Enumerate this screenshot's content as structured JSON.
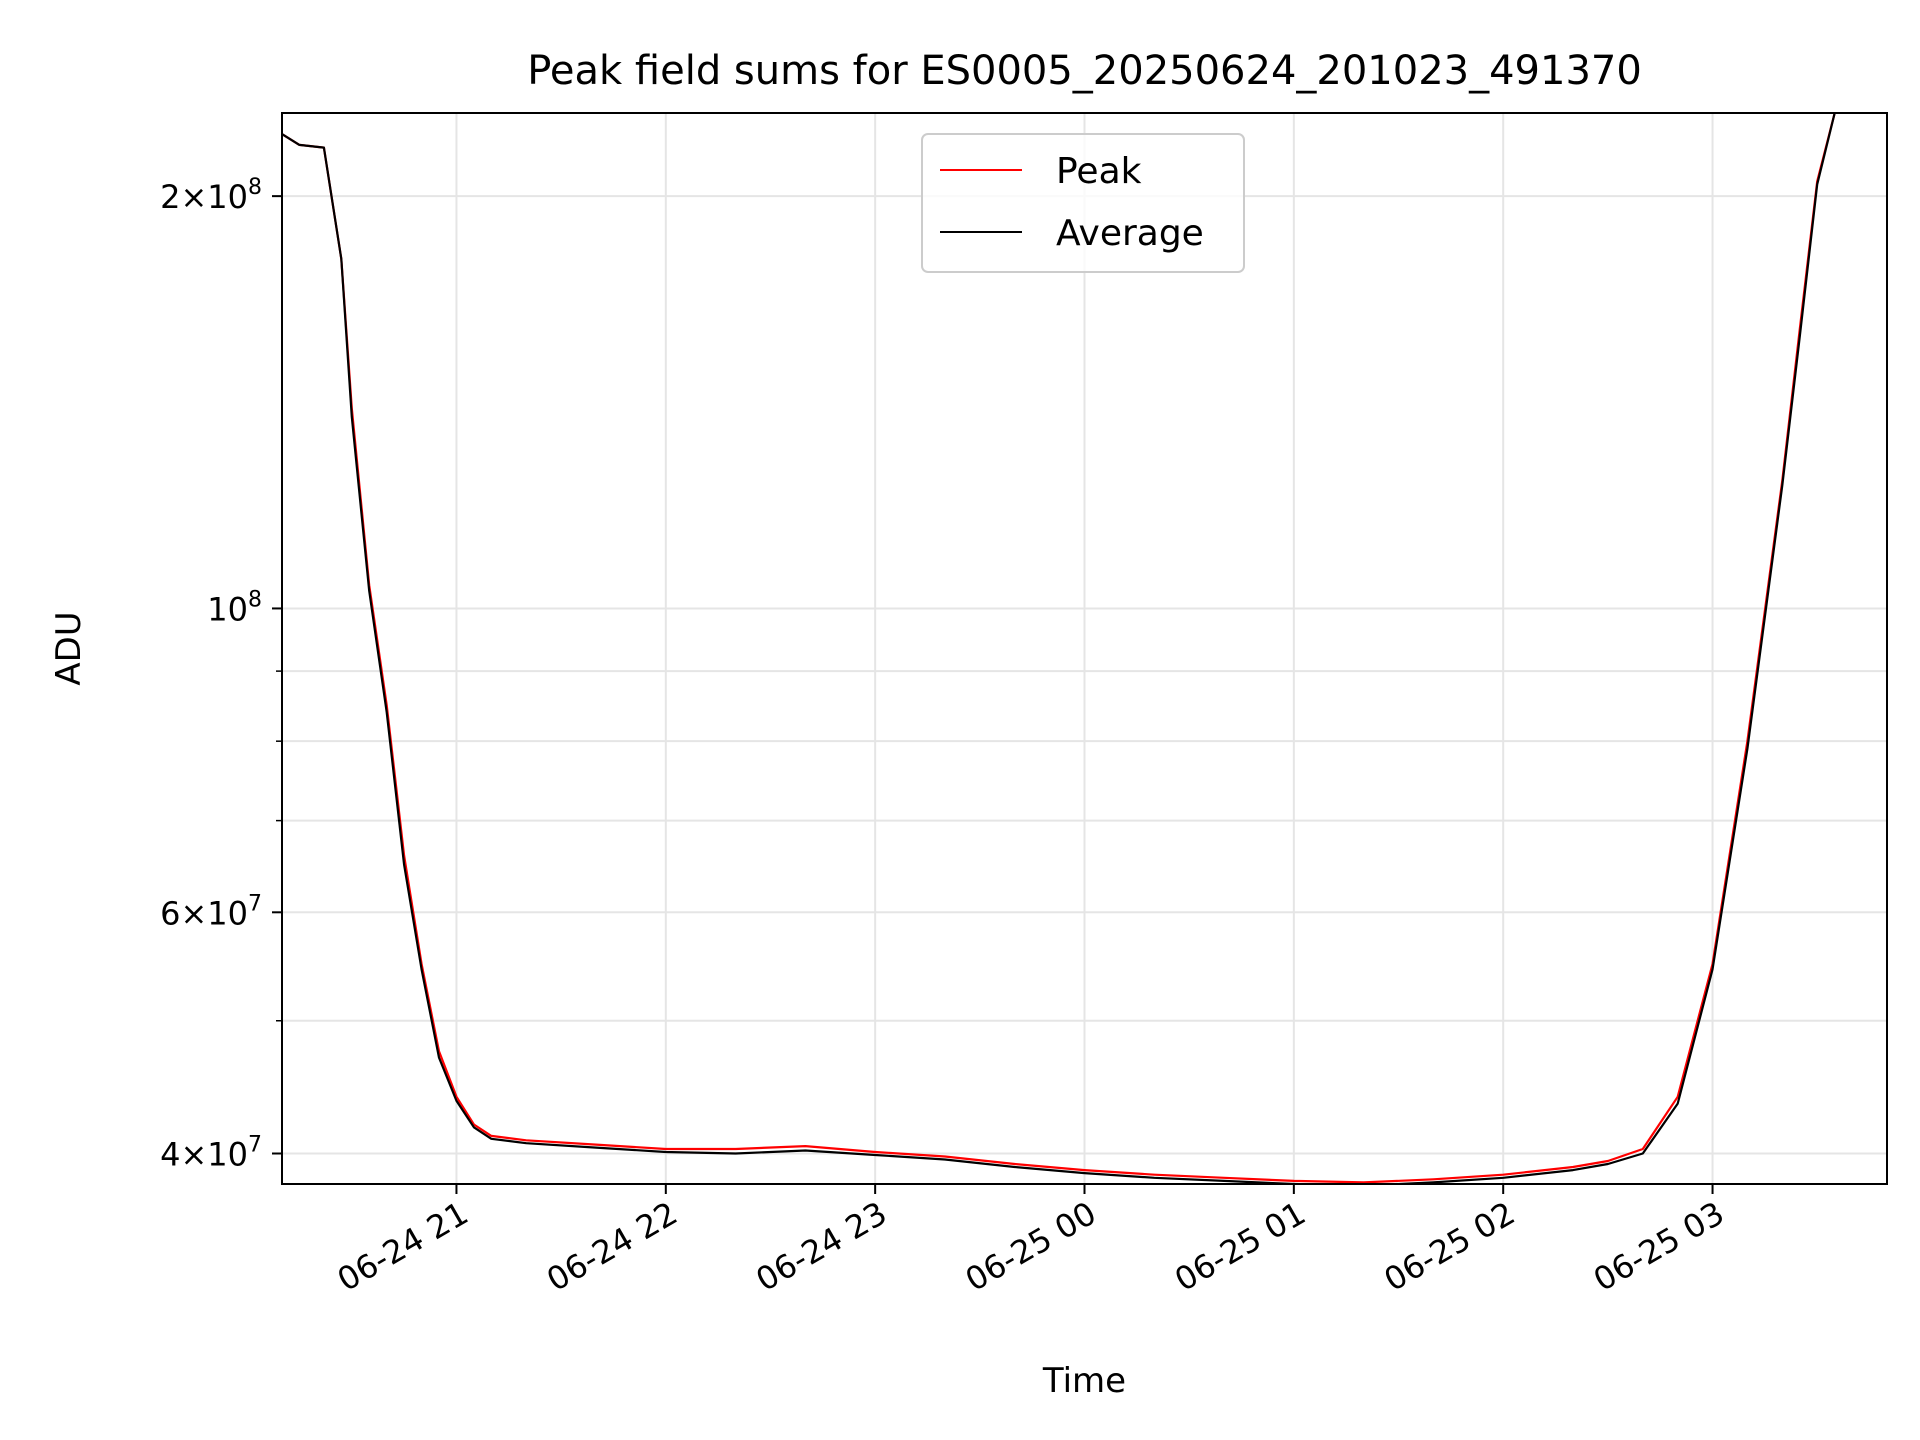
{
  "chart_data": {
    "type": "line",
    "title": "Peak field sums for ES0005_20250624_201023_491370",
    "xlabel": "Time",
    "ylabel": "ADU",
    "yscale": "log",
    "grid": true,
    "legend_position": "top-center",
    "xlim": [
      "2025-06-24 20:10",
      "2025-06-25 03:50"
    ],
    "ylim": [
      38000000,
      230000000
    ],
    "x_ticks": [
      {
        "value": "2025-06-24 21:00",
        "label": "06-24 21"
      },
      {
        "value": "2025-06-24 22:00",
        "label": "06-24 22"
      },
      {
        "value": "2025-06-24 23:00",
        "label": "06-24 23"
      },
      {
        "value": "2025-06-25 00:00",
        "label": "06-25 00"
      },
      {
        "value": "2025-06-25 01:00",
        "label": "06-25 01"
      },
      {
        "value": "2025-06-25 02:00",
        "label": "06-25 02"
      },
      {
        "value": "2025-06-25 03:00",
        "label": "06-25 03"
      }
    ],
    "y_ticks": [
      {
        "value": 40000000,
        "base": "4",
        "exp": "7"
      },
      {
        "value": 60000000,
        "base": "6",
        "exp": "7"
      },
      {
        "value": 100000000,
        "base": "",
        "exp": "8"
      },
      {
        "value": 200000000,
        "base": "2",
        "exp": "8"
      }
    ],
    "y_minor_ticks": [
      50000000,
      70000000,
      80000000,
      90000000
    ],
    "series": [
      {
        "name": "Peak",
        "color": "#ff0000",
        "x": [
          "2025-06-24 20:10",
          "2025-06-24 20:15",
          "2025-06-24 20:22",
          "2025-06-24 20:27",
          "2025-06-24 20:30",
          "2025-06-24 20:35",
          "2025-06-24 20:40",
          "2025-06-24 20:45",
          "2025-06-24 20:50",
          "2025-06-24 20:55",
          "2025-06-24 21:00",
          "2025-06-24 21:05",
          "2025-06-24 21:10",
          "2025-06-24 21:20",
          "2025-06-24 21:40",
          "2025-06-24 22:00",
          "2025-06-24 22:20",
          "2025-06-24 22:40",
          "2025-06-24 23:00",
          "2025-06-24 23:20",
          "2025-06-24 23:40",
          "2025-06-25 00:00",
          "2025-06-25 00:20",
          "2025-06-25 00:40",
          "2025-06-25 01:00",
          "2025-06-25 01:20",
          "2025-06-25 01:40",
          "2025-06-25 02:00",
          "2025-06-25 02:20",
          "2025-06-25 02:30",
          "2025-06-25 02:40",
          "2025-06-25 02:50",
          "2025-06-25 03:00",
          "2025-06-25 03:10",
          "2025-06-25 03:20",
          "2025-06-25 03:25",
          "2025-06-25 03:30",
          "2025-06-25 03:35"
        ],
        "values": [
          222000000,
          218000000,
          217000000,
          180000000,
          140000000,
          104000000,
          85000000,
          66000000,
          55000000,
          47500000,
          44000000,
          42000000,
          41200000,
          40900000,
          40600000,
          40300000,
          40300000,
          40500000,
          40100000,
          39800000,
          39300000,
          38900000,
          38600000,
          38400000,
          38200000,
          38100000,
          38300000,
          38600000,
          39100000,
          39500000,
          40300000,
          44000000,
          55000000,
          80000000,
          124000000,
          160000000,
          205000000,
          230000000
        ]
      },
      {
        "name": "Average",
        "color": "#000000",
        "x": [
          "2025-06-24 20:10",
          "2025-06-24 20:15",
          "2025-06-24 20:22",
          "2025-06-24 20:27",
          "2025-06-24 20:30",
          "2025-06-24 20:35",
          "2025-06-24 20:40",
          "2025-06-24 20:45",
          "2025-06-24 20:50",
          "2025-06-24 20:55",
          "2025-06-24 21:00",
          "2025-06-24 21:05",
          "2025-06-24 21:10",
          "2025-06-24 21:20",
          "2025-06-24 21:40",
          "2025-06-24 22:00",
          "2025-06-24 22:20",
          "2025-06-24 22:40",
          "2025-06-24 23:00",
          "2025-06-24 23:20",
          "2025-06-24 23:40",
          "2025-06-25 00:00",
          "2025-06-25 00:20",
          "2025-06-25 00:40",
          "2025-06-25 01:00",
          "2025-06-25 01:20",
          "2025-06-25 01:40",
          "2025-06-25 02:00",
          "2025-06-25 02:20",
          "2025-06-25 02:30",
          "2025-06-25 02:40",
          "2025-06-25 02:50",
          "2025-06-25 03:00",
          "2025-06-25 03:10",
          "2025-06-25 03:20",
          "2025-06-25 03:25",
          "2025-06-25 03:30",
          "2025-06-25 03:35"
        ],
        "values": [
          222000000,
          218000000,
          217000000,
          180000000,
          138000000,
          103000000,
          84000000,
          65000000,
          54500000,
          47000000,
          43700000,
          41800000,
          41000000,
          40700000,
          40400000,
          40100000,
          40000000,
          40200000,
          39900000,
          39600000,
          39100000,
          38700000,
          38400000,
          38200000,
          38000000,
          37900000,
          38100000,
          38400000,
          38900000,
          39300000,
          40000000,
          43500000,
          54500000,
          79000000,
          123000000,
          158000000,
          204000000,
          230000000
        ]
      }
    ]
  }
}
